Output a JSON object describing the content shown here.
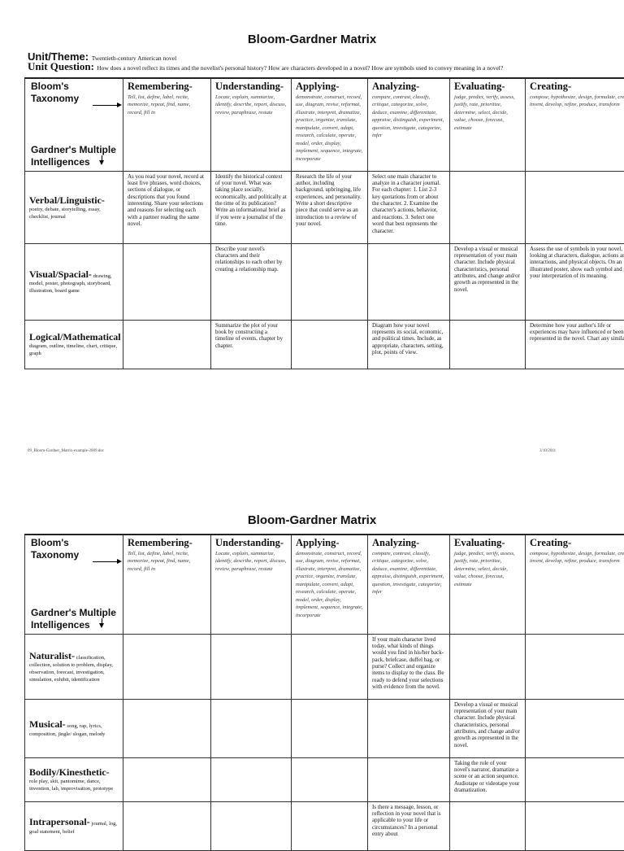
{
  "title": "Bloom-Gardner Matrix",
  "unit_theme_label": "Unit/Theme:",
  "unit_theme": "Twentieth-century American novel",
  "unit_question_label": "Unit Question:",
  "unit_question": "How does a novel reflect its times and the novelist's personal history? How are characters developed in a novel? How are symbols used to convey meaning in a novel?",
  "corner": {
    "blooms": "Bloom's Taxonomy",
    "gardner": "Gardner's Multiple Intelligences"
  },
  "levels": [
    {
      "name": "Remembering-",
      "verbs": "Tell, list, define, label, recite, memorize, repeat, find, name, record, fill in"
    },
    {
      "name": "Understanding-",
      "verbs": "Locate, explain, summarize, identify, describe, report, discuss, review, paraphrase, restate"
    },
    {
      "name": "Applying-",
      "verbs": "demonstrate, construct, record, use, diagram, revise, reformat, illustrate, interpret, dramatize, practice, organize, translate, manipulate, convert, adapt, research, calculate, operate, model, order, display, implement, sequence, integrate, incorporate"
    },
    {
      "name": "Analyzing-",
      "verbs": "compare, contrast, classify, critique, categorize, solve, deduce, examine, differentiate, appraise, distinguish, experiment, question, investigate, categorize, infer"
    },
    {
      "name": "Evaluating-",
      "verbs": "judge, predict, verify, assess, justify, rate, prioritize, determine, select, decide, value, choose, forecast, estimate"
    },
    {
      "name": "Creating-",
      "verbs": "compose, hypothesize, design, formulate, create, invent, develop, refine, produce, transform"
    }
  ],
  "page1_rows": [
    {
      "name": "Verbal/Linguistic-",
      "desc": "poetry, debate, storytelling, essay, checklist, journal",
      "cells": [
        "As you read your novel, record at least five phrases, word choices, sections of dialogue, or descriptions that you found interesting. Share your selections and reasons for selecting each with a partner reading the same novel.",
        "Identify the historical context of your novel. What was taking place socially, economically, and politically at the time of its publication? Write an informational brief as if you were a journalist of the time.",
        "Research the life of your author, including background, upbringing, life experiences, and personality. Write a short descriptive piece that could serve as an introduction to a review of your novel.",
        "Select one main character to analyze in a character journal. For each chapter: 1. List 2-3 key quotations from or about the character. 2. Examine the character's actions, behavior, and reactions. 3. Select one word that best represents the character.",
        "",
        ""
      ]
    },
    {
      "name": "Visual/Spacial-",
      "desc": "drawing, model, poster, photograph, storyboard, illustration, board game",
      "cells": [
        "",
        "Describe your novel's characters and their relationships to each other by creating a relationship map.",
        "",
        "",
        "Develop a visual or musical representation of your main character. Include physical characteristics, personal attributes, and change and/or growth as represented in the novel.",
        "Assess the use of symbols in your novel, looking at characters, dialogue, actions and interactions, and physical objects. On an illustrated poster, show each symbol and give your interpretation of its meaning."
      ]
    },
    {
      "name": "Logical/Mathematical",
      "desc": "diagram, outline, timeline, chart, critique, graph",
      "cells": [
        "",
        "Summarize the plot of your book by constructing a timeline of events, chapter by chapter.",
        "",
        "Diagram how your novel represents its social, economic, and political times. Include, as appropriate, characters, setting, plot, points of view.",
        "",
        "Determine how your author's life or experiences may have influenced or been represented in the novel. Chart any similarities."
      ]
    }
  ],
  "footer": {
    "file": "09_Bloom-Gardner_Matrix-example-2009.doc",
    "date": "3/10/2011"
  },
  "page2_rows": [
    {
      "name": "Naturalist-",
      "desc": "classification, collection, solution to problem, display, observation, forecast, investigation, simulation, exhibit, identification",
      "cells": [
        "",
        "",
        "",
        "If your main character lived today, what kinds of things would you find in his/her back-pack, briefcase, duffel bag, or purse? Collect and organize items to display to the class. Be ready to defend your selections with evidence from the novel.",
        "",
        ""
      ]
    },
    {
      "name": "Musical-",
      "desc": "song, rap, lyrics, composition, jingle/ slogan, melody",
      "cells": [
        "",
        "",
        "",
        "",
        "Develop a visual or musical representation of your main character. Include physical characteristics, personal attributes, and change and/or growth as represented in the novel.",
        ""
      ]
    },
    {
      "name": "Bodily/Kinesthetic-",
      "desc": "role play, skit, pantomime, dance, invention, lab, improvisation, prototype",
      "cells": [
        "",
        "",
        "",
        "",
        "Taking the role of your novel's narrator, dramatize a scene or an action sequence. Audiotape or videotape your dramatization.",
        ""
      ]
    },
    {
      "name": "Intrapersonal-",
      "desc": "journal, log, goal statement, belief",
      "cells": [
        "",
        "",
        "",
        "Is there a message, lesson, or reflection in your novel that is applicable to your life or circumstances? In a personal entry about",
        "",
        ""
      ]
    }
  ]
}
